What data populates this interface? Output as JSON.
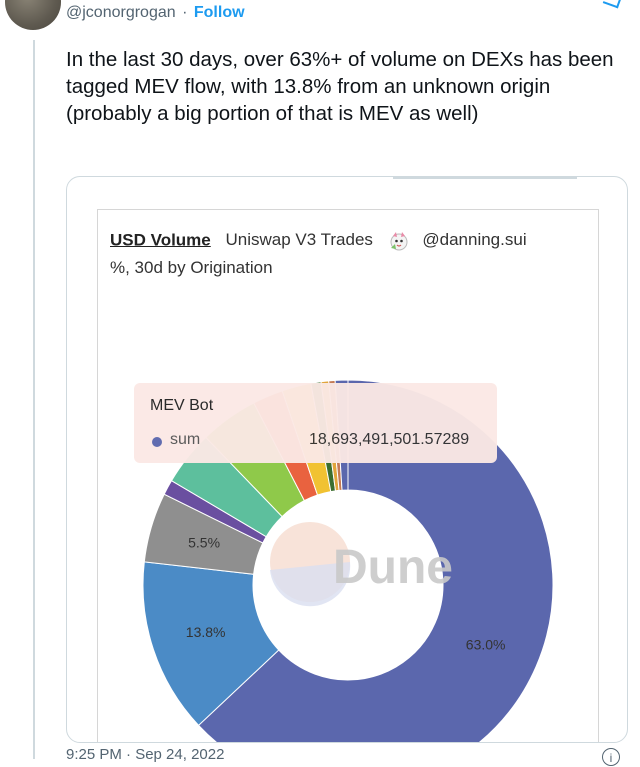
{
  "tweet": {
    "handle": "@jconorgrogan",
    "separator": "·",
    "follow_label": "Follow",
    "text": "In the last 30 days, over 63%+ of volume on DEXs has been tagged MEV flow, with 13.8% from an unknown origin (probably a big portion of that is MEV as well)",
    "timestamp": "9:25 PM · Sep 24, 2022"
  },
  "chart": {
    "metric": "USD Volume",
    "query": "Uniswap V3 Trades",
    "author": "@danning.sui",
    "subtitle": "%, 30d by Origination",
    "watermark": "Dune",
    "tooltip": {
      "title": "MEV Bot",
      "series_label": "sum",
      "value": "18,693,491,501.57289"
    }
  },
  "chart_data": {
    "type": "pie",
    "slices": [
      {
        "name": "MEV Bot",
        "value": 63.0,
        "label": "63.0%",
        "color": "#5b67ad"
      },
      {
        "name": "",
        "value": 13.8,
        "label": "13.8%",
        "color": "#4b8bc6"
      },
      {
        "name": "",
        "value": 5.5,
        "label": "5.5%",
        "color": "#8f8f8f"
      },
      {
        "name": "",
        "value": 1.2,
        "label": "",
        "color": "#6a4fa0"
      },
      {
        "name": "",
        "value": 4.3,
        "label": "",
        "color": "#5dbf9d"
      },
      {
        "name": "",
        "value": 4.6,
        "label": "",
        "color": "#8fc94a"
      },
      {
        "name": "",
        "value": 2.4,
        "label": "",
        "color": "#e9623f"
      },
      {
        "name": "",
        "value": 2.3,
        "label": "",
        "color": "#f1c232"
      },
      {
        "name": "",
        "value": 0.8,
        "label": "",
        "color": "#3b6e2f"
      },
      {
        "name": "",
        "value": 0.6,
        "label": "",
        "color": "#e1a53c"
      },
      {
        "name": "",
        "value": 0.5,
        "label": "",
        "color": "#c47b55"
      },
      {
        "name": "",
        "value": 1.0,
        "label": "",
        "color": "#5b67ad"
      }
    ]
  }
}
